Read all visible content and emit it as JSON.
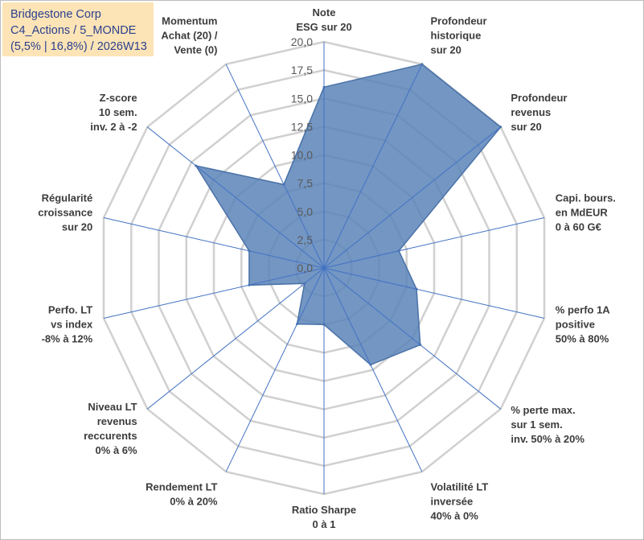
{
  "header": {
    "line1": "Bridgestone Corp",
    "line2": "C4_Actions / 5_MONDE",
    "line3": "(5,5% | 16,8%) / 2026W13"
  },
  "colors": {
    "fill": "#5b84b8",
    "stroke": "#4a72a8",
    "grid": "#d0d0d0",
    "spoke": "#4472c4",
    "title_bg": "#fce4b6",
    "title_text": "#2b3f8f"
  },
  "chart_data": {
    "type": "radar",
    "rmax": 20,
    "tick_values": [
      0,
      2.5,
      5,
      7.5,
      10,
      12.5,
      15,
      17.5,
      20
    ],
    "tick_labels": [
      "0,0",
      "2,5",
      "5,0",
      "7,5",
      "10,0",
      "12,5",
      "15,0",
      "17,5",
      "20,0"
    ],
    "categories": [
      [
        "Note",
        "ESG sur 20"
      ],
      [
        "Profondeur",
        "historique",
        "sur 20"
      ],
      [
        "Profondeur",
        "revenus",
        "sur 20"
      ],
      [
        "Capi. bours.",
        "en MdEUR",
        "0 à 60 G€"
      ],
      [
        "% perfo 1A",
        "positive",
        "50% à 80%"
      ],
      [
        "% perte max.",
        "sur 1 sem.",
        "inv. 50% à 20%"
      ],
      [
        "Volatilité LT",
        "inversée",
        "40% à 0%"
      ],
      [
        "Ratio Sharpe",
        "0 à 1"
      ],
      [
        "Rendement LT",
        "0% à 20%"
      ],
      [
        "Niveau LT",
        "revenus",
        "reccurents",
        "0% à 6%"
      ],
      [
        "Perfo. LT",
        "vs index",
        "-8% à 12%"
      ],
      [
        "Régularité",
        "croissance",
        "sur 20"
      ],
      [
        "Z-score",
        "10 sem.",
        "inv. 2 à -2"
      ],
      [
        "Momentum",
        "Achat (20) /",
        "Vente (0)"
      ]
    ],
    "values": [
      16.0,
      20.0,
      20.0,
      6.8,
      8.4,
      10.9,
      9.5,
      5.0,
      5.5,
      2.2,
      6.8,
      6.8,
      14.5,
      8.2
    ]
  }
}
